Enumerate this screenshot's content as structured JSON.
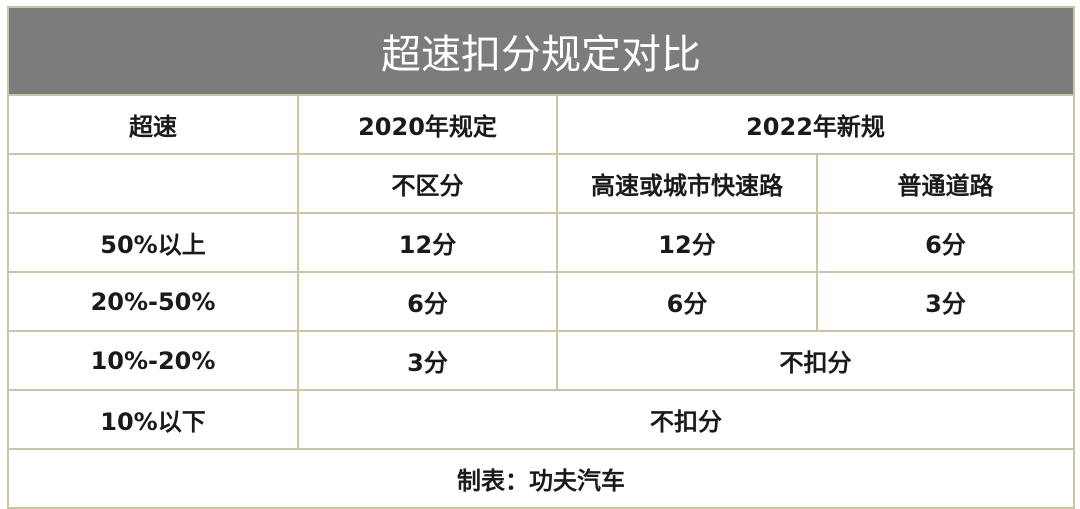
{
  "title": "超速扣分规定对比",
  "header": {
    "col_speeding": "超速",
    "col_2020": "2020年规定",
    "col_2022": "2022年新规"
  },
  "subheader": {
    "col_2020_sub": "不区分",
    "col_2022_highway": "高速或城市快速路",
    "col_2022_normal": "普通道路"
  },
  "rows": [
    {
      "speeding": "50%以上",
      "y2020": "12分",
      "highway": "12分",
      "normal": "6分"
    },
    {
      "speeding": "20%-50%",
      "y2020": "6分",
      "highway": "6分",
      "normal": "3分"
    },
    {
      "speeding": "10%-20%",
      "y2020": "3分",
      "merged_2022": "不扣分"
    },
    {
      "speeding": "10%以下",
      "merged_all": "不扣分"
    }
  ],
  "footer": "制表：功夫汽车"
}
